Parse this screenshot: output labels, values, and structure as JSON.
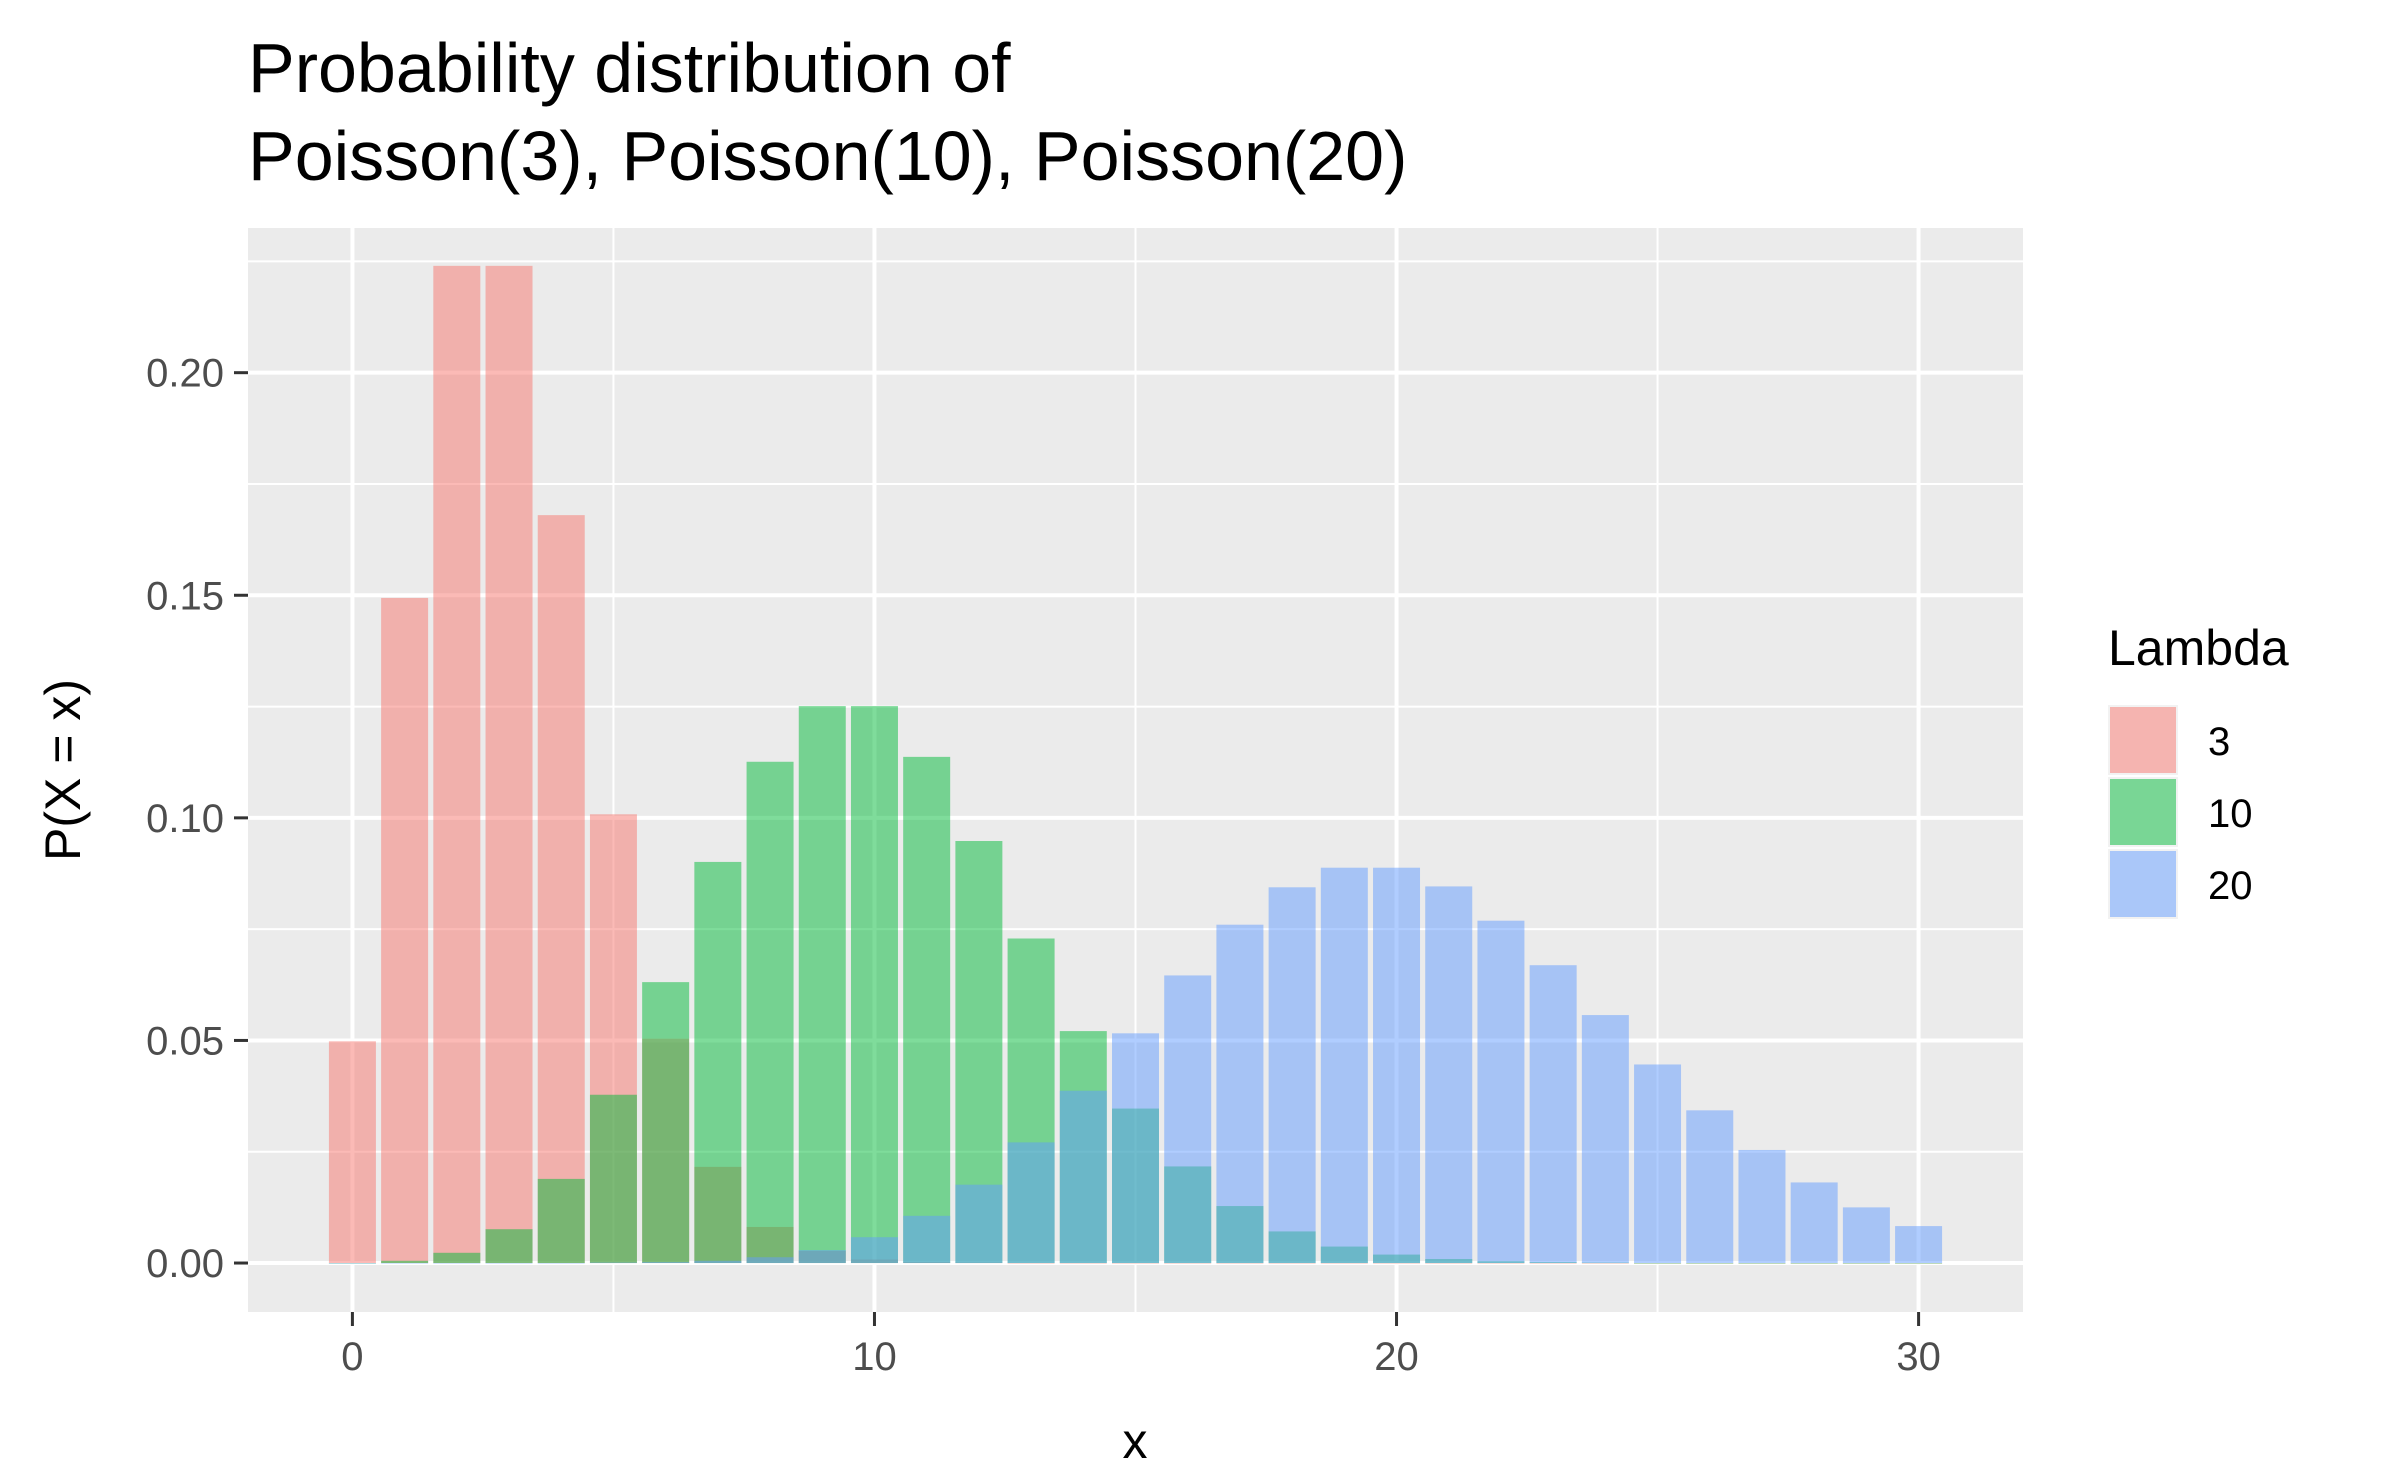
{
  "chart_data": {
    "type": "bar",
    "title_lines": [
      "Probability distribution of",
      "Poisson(3), Poisson(10), Poisson(20)"
    ],
    "xlabel": "x",
    "ylabel": "P(X = x)",
    "xlim": [
      -2,
      32
    ],
    "ylim": [
      -0.011,
      0.2325
    ],
    "x_ticks": [
      0,
      10,
      20,
      30
    ],
    "y_ticks": [
      0.0,
      0.05,
      0.1,
      0.15,
      0.2
    ],
    "y_tick_labels": [
      "0.00",
      "0.05",
      "0.10",
      "0.15",
      "0.20"
    ],
    "grid": true,
    "legend": {
      "title": "Lambda",
      "position": "right"
    },
    "series": [
      {
        "name": "3",
        "color": "#F8766D",
        "x": [
          0,
          1,
          2,
          3,
          4,
          5,
          6,
          7,
          8,
          9,
          10,
          11,
          12,
          13,
          14,
          15,
          16,
          17,
          18,
          19,
          20,
          21,
          22,
          23,
          24,
          25,
          26,
          27,
          28,
          29,
          30
        ],
        "values": [
          0.0498,
          0.1494,
          0.224,
          0.224,
          0.168,
          0.1008,
          0.0504,
          0.0216,
          0.0081,
          0.0027,
          0.0008,
          0.0002,
          0.0001,
          0,
          0,
          0,
          0,
          0,
          0,
          0,
          0,
          0,
          0,
          0,
          0,
          0,
          0,
          0,
          0,
          0,
          0
        ]
      },
      {
        "name": "10",
        "color": "#00BA38",
        "x": [
          0,
          1,
          2,
          3,
          4,
          5,
          6,
          7,
          8,
          9,
          10,
          11,
          12,
          13,
          14,
          15,
          16,
          17,
          18,
          19,
          20,
          21,
          22,
          23,
          24,
          25,
          26,
          27,
          28,
          29,
          30
        ],
        "values": [
          0.0,
          0.0005,
          0.0023,
          0.0076,
          0.0189,
          0.0378,
          0.0631,
          0.0901,
          0.1126,
          0.1251,
          0.1251,
          0.1137,
          0.0948,
          0.0729,
          0.0521,
          0.0347,
          0.0217,
          0.0128,
          0.0071,
          0.0037,
          0.0019,
          0.0009,
          0.0004,
          0.0002,
          0.0001,
          0,
          0,
          0,
          0,
          0,
          0
        ]
      },
      {
        "name": "20",
        "color": "#619CFF",
        "x": [
          0,
          1,
          2,
          3,
          4,
          5,
          6,
          7,
          8,
          9,
          10,
          11,
          12,
          13,
          14,
          15,
          16,
          17,
          18,
          19,
          20,
          21,
          22,
          23,
          24,
          25,
          26,
          27,
          28,
          29,
          30
        ],
        "values": [
          0,
          0,
          0,
          0,
          0,
          0.0001,
          0.0002,
          0.0005,
          0.0013,
          0.0029,
          0.0058,
          0.0106,
          0.0176,
          0.0271,
          0.0387,
          0.0516,
          0.0646,
          0.076,
          0.0844,
          0.0888,
          0.0888,
          0.0846,
          0.0769,
          0.0669,
          0.0557,
          0.0446,
          0.0343,
          0.0254,
          0.0181,
          0.0125,
          0.0083
        ]
      }
    ]
  }
}
